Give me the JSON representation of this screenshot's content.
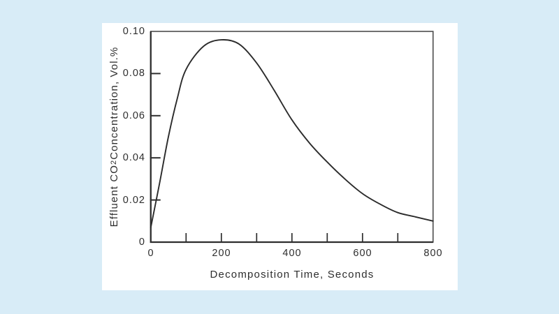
{
  "page": {
    "background_color": "#d8ecf7",
    "panel_color": "#ffffff"
  },
  "chart_data": {
    "type": "line",
    "title": "",
    "xlabel": "Decomposition Time, Seconds",
    "ylabel": "Effluent CO2 Concentration, Vol.%",
    "ylabel_parts": {
      "prefix": "Effluent CO",
      "sub": "2",
      "suffix": " Concentration, Vol.%"
    },
    "x": [
      0,
      25,
      50,
      75,
      100,
      150,
      200,
      250,
      300,
      350,
      400,
      450,
      500,
      550,
      600,
      650,
      700,
      750,
      800
    ],
    "series": [
      {
        "name": "Effluent CO2 concentration",
        "values": [
          0.007,
          0.028,
          0.05,
          0.068,
          0.082,
          0.093,
          0.096,
          0.094,
          0.085,
          0.072,
          0.058,
          0.047,
          0.038,
          0.03,
          0.023,
          0.018,
          0.014,
          0.012,
          0.01
        ]
      }
    ],
    "xlim": [
      0,
      800
    ],
    "ylim": [
      0,
      0.1
    ],
    "xtick_labels": [
      "0",
      "200",
      "400",
      "600",
      "800"
    ],
    "xtick_values": [
      0,
      200,
      400,
      600,
      800
    ],
    "xtick_marks": [
      100,
      200,
      300,
      400,
      500,
      600,
      700
    ],
    "ytick_labels": [
      "0.10",
      "0.08",
      "0.06",
      "0.04",
      "0.02",
      "0"
    ],
    "ytick_values": [
      0.1,
      0.08,
      0.06,
      0.04,
      0.02,
      0
    ],
    "ytick_marks": [
      0.02,
      0.04,
      0.06,
      0.08
    ],
    "grid": false,
    "legend_position": "none",
    "line_color": "#2b2b2b",
    "axis_color": "#2e2e2e"
  }
}
